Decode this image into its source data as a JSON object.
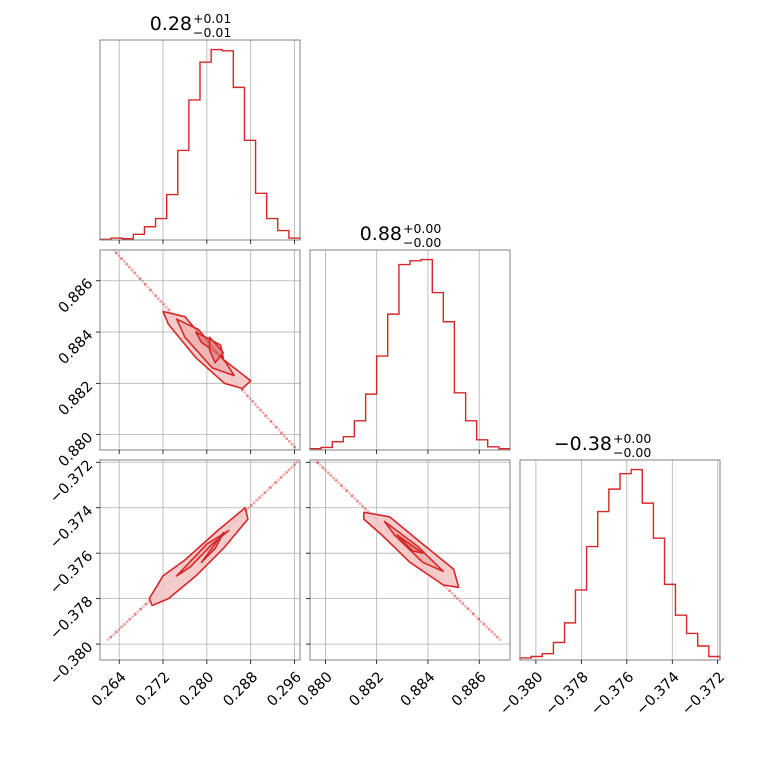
{
  "chart_data": {
    "type": "corner",
    "colors": {
      "line": "#d62728",
      "fill": "#f4c6c6",
      "frame": "#808080",
      "grid": "#b0b0b0"
    },
    "parameters": [
      {
        "range": [
          0.2605,
          0.297
        ],
        "ticks": [
          0.264,
          0.272,
          0.28,
          0.288,
          0.296
        ],
        "tick_labels": [
          "0.264",
          "0.272",
          "0.280",
          "0.288",
          "0.296"
        ],
        "title": {
          "value": "0.28",
          "plus": "+0.01",
          "minus": "−0.01"
        }
      },
      {
        "range": [
          0.8794,
          0.8872
        ],
        "ticks": [
          0.88,
          0.882,
          0.884,
          0.886
        ],
        "tick_labels": [
          "0.880",
          "0.882",
          "0.884",
          "0.886"
        ],
        "title": {
          "value": "0.88",
          "plus": "+0.00",
          "minus": "−0.00"
        }
      },
      {
        "range": [
          -0.3807,
          -0.3719
        ],
        "ticks": [
          -0.38,
          -0.378,
          -0.376,
          -0.374,
          -0.372
        ],
        "tick_labels": [
          "−0.380",
          "−0.378",
          "−0.376",
          "−0.374",
          "−0.372"
        ],
        "title": {
          "value": "−0.38",
          "plus": "+0.00",
          "minus": "−0.00"
        }
      }
    ],
    "histograms": [
      {
        "edges": [
          0.2605,
          0.26253,
          0.26456,
          0.26658,
          0.26861,
          0.27064,
          0.27267,
          0.27469,
          0.27672,
          0.27875,
          0.28078,
          0.28281,
          0.28483,
          0.28686,
          0.28889,
          0.29092,
          0.29294,
          0.29497,
          0.297
        ],
        "heights": [
          0.5,
          1.5,
          1.0,
          4.5,
          10.5,
          17.0,
          36.0,
          71.0,
          111.0,
          141.0,
          151.0,
          150.0,
          121.0,
          79.0,
          37.0,
          17.0,
          7.5,
          1.5
        ]
      },
      {
        "edges": [
          0.8794,
          0.87983,
          0.88027,
          0.8807,
          0.88113,
          0.88157,
          0.882,
          0.88243,
          0.88287,
          0.8833,
          0.88373,
          0.88417,
          0.8846,
          0.88503,
          0.88547,
          0.8859,
          0.88633,
          0.88677,
          0.8872
        ],
        "heights": [
          1.0,
          2.0,
          6.5,
          10.5,
          23.0,
          44.0,
          74.0,
          107.0,
          146.0,
          149.0,
          150.0,
          124.0,
          101.0,
          45.0,
          23.0,
          8.0,
          2.5,
          1.0
        ]
      },
      {
        "edges": [
          -0.3807,
          -0.38021,
          -0.37972,
          -0.37923,
          -0.37874,
          -0.37826,
          -0.37777,
          -0.37728,
          -0.37679,
          -0.3763,
          -0.37581,
          -0.37532,
          -0.37483,
          -0.37434,
          -0.37386,
          -0.37337,
          -0.37288,
          -0.37239,
          -0.3719
        ],
        "heights": [
          1.5,
          2.5,
          4.5,
          12.5,
          26.5,
          50.0,
          81.0,
          106.0,
          122.0,
          133.0,
          136.0,
          112.0,
          87.0,
          54.0,
          32.0,
          19.0,
          10.0,
          2.5
        ]
      }
    ],
    "pairs": [
      {
        "x": 0,
        "y": 1,
        "scatter_line": [
          [
            0.263,
            0.8872
          ],
          [
            0.2965,
            0.8794
          ]
        ],
        "contours": [
          [
            [
              0.272,
              0.8848
            ],
            [
              0.276,
              0.8846
            ],
            [
              0.282,
              0.8831
            ],
            [
              0.288,
              0.8821
            ],
            [
              0.2865,
              0.8818
            ],
            [
              0.2832,
              0.882
            ],
            [
              0.278,
              0.883
            ],
            [
              0.273,
              0.8843
            ]
          ],
          [
            [
              0.2745,
              0.8845
            ],
            [
              0.2785,
              0.8841
            ],
            [
              0.2835,
              0.8828
            ],
            [
              0.285,
              0.8823
            ],
            [
              0.281,
              0.8826
            ],
            [
              0.276,
              0.8838
            ]
          ],
          [
            [
              0.278,
              0.884
            ],
            [
              0.2825,
              0.8835
            ],
            [
              0.283,
              0.883
            ],
            [
              0.279,
              0.8836
            ]
          ],
          [
            [
              0.2805,
              0.8838
            ],
            [
              0.283,
              0.8832
            ],
            [
              0.2815,
              0.8828
            ],
            [
              0.2805,
              0.8833
            ]
          ]
        ]
      },
      {
        "x": 0,
        "y": 2,
        "scatter_line": [
          [
            0.262,
            -0.3798
          ],
          [
            0.2965,
            -0.372
          ]
        ],
        "contours": [
          [
            [
              0.2695,
              -0.378
            ],
            [
              0.272,
              -0.377
            ],
            [
              0.276,
              -0.3763
            ],
            [
              0.282,
              -0.375
            ],
            [
              0.287,
              -0.374
            ],
            [
              0.2875,
              -0.3745
            ],
            [
              0.283,
              -0.3758
            ],
            [
              0.278,
              -0.377
            ],
            [
              0.273,
              -0.378
            ],
            [
              0.27,
              -0.3783
            ]
          ],
          [
            [
              0.2745,
              -0.377
            ],
            [
              0.28,
              -0.3756
            ],
            [
              0.284,
              -0.375
            ],
            [
              0.281,
              -0.3756
            ],
            [
              0.277,
              -0.3766
            ]
          ],
          [
            [
              0.279,
              -0.3764
            ],
            [
              0.283,
              -0.3751
            ],
            [
              0.2815,
              -0.3758
            ]
          ]
        ]
      },
      {
        "x": 1,
        "y": 2,
        "scatter_line": [
          [
            0.8796,
            -0.3719
          ],
          [
            0.8868,
            -0.3798
          ]
        ],
        "contours": [
          [
            [
              0.8815,
              -0.3742
            ],
            [
              0.8825,
              -0.3744
            ],
            [
              0.8838,
              -0.3756
            ],
            [
              0.885,
              -0.3767
            ],
            [
              0.8852,
              -0.3775
            ],
            [
              0.8846,
              -0.3774
            ],
            [
              0.8833,
              -0.3764
            ],
            [
              0.8822,
              -0.3752
            ],
            [
              0.8815,
              -0.3745
            ]
          ],
          [
            [
              0.8823,
              -0.3746
            ],
            [
              0.8836,
              -0.3757
            ],
            [
              0.8846,
              -0.3768
            ],
            [
              0.8838,
              -0.3764
            ],
            [
              0.8827,
              -0.3752
            ]
          ],
          [
            [
              0.8828,
              -0.3752
            ],
            [
              0.8838,
              -0.376
            ],
            [
              0.8834,
              -0.3759
            ]
          ]
        ]
      }
    ]
  }
}
